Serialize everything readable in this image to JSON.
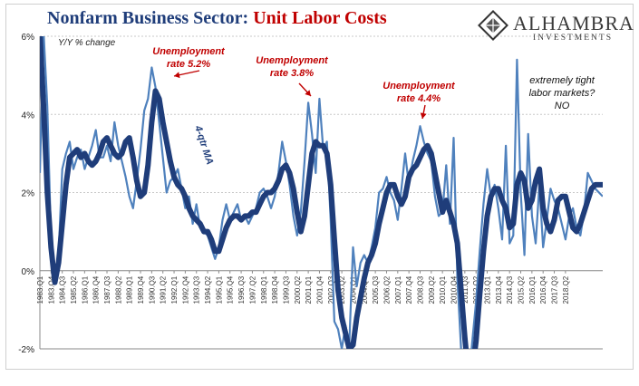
{
  "title": {
    "part1": "Nonfarm Business Sector:",
    "part2": "Unit Labor Costs"
  },
  "logo": {
    "name": "ALHAMBRA",
    "sub": "INVESTMENTS"
  },
  "colors": {
    "title_blue": "#1f3d7a",
    "title_red": "#c00000",
    "thin_line": "#4f81bd",
    "thick_line": "#1f3d7a",
    "annotation_red": "#c00000"
  },
  "chart_data": {
    "type": "line",
    "ylabel": "Y/Y % change",
    "ylim": [
      -2,
      6
    ],
    "yticks": [
      "6%",
      "4%",
      "2%",
      "0%",
      "-2%"
    ],
    "grid": true,
    "x_tick_labels": [
      "1983.Q1",
      "1983.Q4",
      "1984.Q3",
      "1985.Q2",
      "1986.Q1",
      "1986.Q4",
      "1987.Q3",
      "1988.Q2",
      "1989.Q1",
      "1989.Q4",
      "1990.Q3",
      "1991.Q2",
      "1992.Q1",
      "1992.Q4",
      "1993.Q3",
      "1994.Q2",
      "1995.Q1",
      "1995.Q4",
      "1996.Q3",
      "1997.Q2",
      "1998.Q1",
      "1998.Q4",
      "1999.Q3",
      "2000.Q2",
      "2001.Q1",
      "2001.Q4",
      "2002.Q3",
      "2003.Q2",
      "2004.Q1",
      "2004.Q4",
      "2005.Q3",
      "2006.Q2",
      "2007.Q1",
      "2007.Q4",
      "2008.Q3",
      "2009.Q2",
      "2010.Q1",
      "2010.Q4",
      "2011.Q3",
      "2012.Q2",
      "2013.Q1",
      "2013.Q4",
      "2014.Q3",
      "2015.Q2",
      "2016.Q1",
      "2016.Q4",
      "2017.Q3",
      "2018.Q2"
    ],
    "series": [
      {
        "name": "",
        "values": [
          2.5,
          6.1,
          4.2,
          0.8,
          -0.3,
          0.4,
          2.6,
          3.0,
          3.3,
          2.6,
          2.9,
          3.1,
          2.6,
          2.9,
          3.2,
          3.6,
          2.9,
          2.9,
          3.2,
          2.8,
          3.8,
          3.2,
          2.8,
          2.4,
          1.9,
          1.6,
          2.3,
          3.1,
          4.1,
          4.4,
          5.2,
          4.7,
          3.8,
          2.9,
          2.0,
          2.3,
          2.4,
          2.6,
          2.1,
          1.6,
          1.9,
          1.2,
          1.7,
          1.1,
          1.0,
          0.9,
          0.6,
          0.3,
          0.6,
          1.3,
          1.7,
          1.3,
          1.5,
          1.7,
          1.3,
          1.4,
          1.2,
          1.4,
          1.6,
          2.0,
          2.1,
          1.9,
          1.6,
          1.9,
          2.5,
          3.3,
          2.8,
          2.2,
          1.4,
          0.9,
          1.5,
          2.8,
          4.3,
          3.5,
          2.5,
          4.4,
          3.1,
          3.3,
          1.3,
          -1.3,
          -1.5,
          -2.0,
          -1.4,
          -1.9,
          0.6,
          -0.4,
          0.2,
          0.4,
          0.2,
          0.6,
          1.1,
          2.0,
          2.1,
          2.4,
          2.0,
          1.8,
          1.3,
          2.1,
          3.0,
          2.2,
          2.8,
          3.2,
          3.7,
          3.3,
          3.0,
          2.8,
          1.9,
          1.4,
          1.5,
          2.7,
          1.2,
          3.4,
          -0.2,
          -2.0,
          -2.6,
          -2.9,
          -1.8,
          -0.8,
          0.5,
          1.7,
          2.6,
          1.9,
          2.2,
          1.6,
          0.8,
          3.2,
          0.7,
          0.9,
          5.4,
          2.0,
          0.4,
          3.5,
          1.4,
          0.7,
          2.2,
          0.6,
          1.3,
          2.1,
          1.8,
          1.6,
          1.2,
          0.8,
          1.4,
          1.6,
          1.1,
          0.9,
          1.5,
          2.5,
          2.3,
          2.1,
          2.0,
          1.9
        ]
      },
      {
        "name": "4-qtr MA",
        "values": [
          6.1,
          4.2,
          2.0,
          0.6,
          -0.3,
          0.2,
          1.2,
          2.2,
          2.9,
          3.0,
          3.1,
          2.9,
          3.0,
          2.8,
          2.7,
          2.8,
          3.0,
          3.3,
          3.4,
          3.2,
          3.0,
          2.9,
          3.0,
          3.3,
          3.4,
          2.9,
          2.3,
          1.9,
          2.0,
          2.7,
          3.8,
          4.6,
          4.4,
          3.8,
          3.3,
          2.8,
          2.4,
          2.2,
          2.1,
          1.9,
          1.6,
          1.4,
          1.3,
          1.2,
          1.0,
          1.0,
          0.8,
          0.5,
          0.5,
          0.8,
          1.1,
          1.3,
          1.4,
          1.4,
          1.3,
          1.4,
          1.4,
          1.5,
          1.5,
          1.7,
          1.9,
          2.0,
          2.0,
          2.1,
          2.3,
          2.6,
          2.7,
          2.5,
          2.1,
          1.5,
          1.0,
          1.4,
          2.2,
          3.0,
          3.3,
          3.2,
          3.2,
          3.0,
          2.2,
          0.8,
          -0.5,
          -1.2,
          -1.6,
          -2.0,
          -1.9,
          -1.2,
          -0.7,
          -0.2,
          0.2,
          0.4,
          0.7,
          1.2,
          1.6,
          2.0,
          2.2,
          2.2,
          1.9,
          1.7,
          1.9,
          2.4,
          2.6,
          2.7,
          2.9,
          3.1,
          3.2,
          3.0,
          2.5,
          2.0,
          1.5,
          1.8,
          1.5,
          1.2,
          0.7,
          -0.5,
          -1.7,
          -2.7,
          -2.6,
          -1.8,
          -0.6,
          0.5,
          1.4,
          1.9,
          2.1,
          2.1,
          1.8,
          1.6,
          1.1,
          1.2,
          2.2,
          2.5,
          2.3,
          1.6,
          1.8,
          2.3,
          2.6,
          1.6,
          1.2,
          1.0,
          1.3,
          1.8,
          1.9,
          1.9,
          1.5,
          1.1,
          1.0,
          1.2,
          1.5,
          1.8,
          2.1,
          2.2,
          2.2,
          2.2
        ]
      }
    ],
    "annotations": [
      {
        "text": "Unemployment rate 5.2%",
        "lines": [
          "Unemployment",
          "rate 5.2%"
        ]
      },
      {
        "text": "Unemployment rate 3.8%",
        "lines": [
          "Unemployment",
          "rate 3.8%"
        ]
      },
      {
        "text": "Unemployment rate 4.4%",
        "lines": [
          "Unemployment",
          "rate 4.4%"
        ]
      },
      {
        "text": "extremely tight labor markets? NO",
        "lines": [
          "extremely tight",
          "labor markets?",
          "NO"
        ]
      }
    ],
    "series_label": "4-qtr MA"
  }
}
